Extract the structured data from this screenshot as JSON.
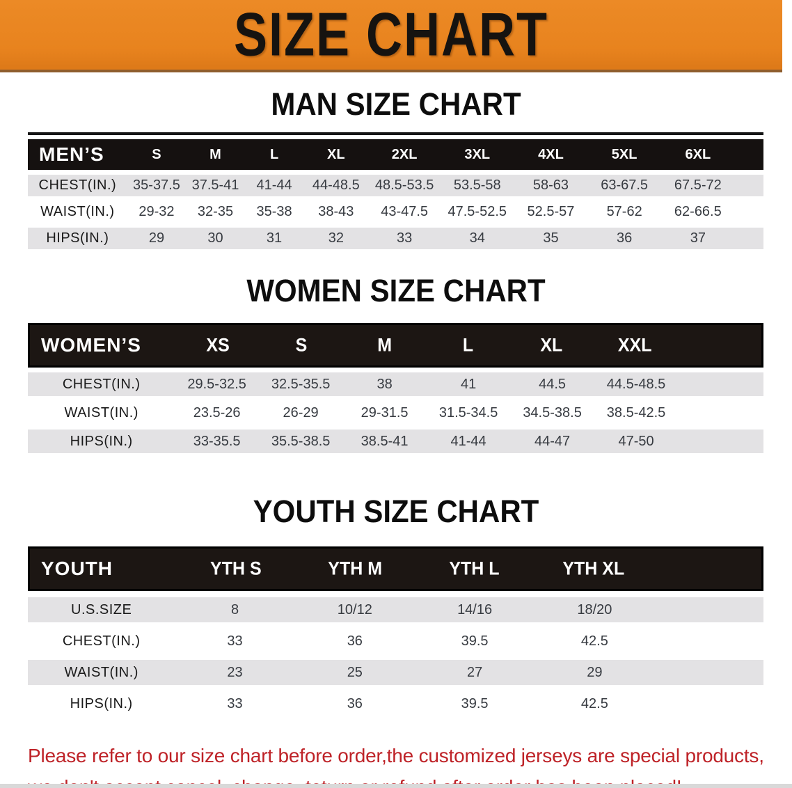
{
  "banner": {
    "title": "SIZE CHART",
    "color_orange": "#E8831E"
  },
  "sections": [
    {
      "title": "MAN SIZE CHART",
      "group_label": "MEN’S",
      "columns": [
        "S",
        "M",
        "L",
        "XL",
        "2XL",
        "3XL",
        "4XL",
        "5XL",
        "6XL"
      ],
      "rows": [
        {
          "label": "CHEST(IN.)",
          "values": [
            "35-37.5",
            "37.5-41",
            "41-44",
            "44-48.5",
            "48.5-53.5",
            "53.5-58",
            "58-63",
            "63-67.5",
            "67.5-72"
          ]
        },
        {
          "label": "WAIST(IN.)",
          "values": [
            "29-32",
            "32-35",
            "35-38",
            "38-43",
            "43-47.5",
            "47.5-52.5",
            "52.5-57",
            "57-62",
            "62-66.5"
          ]
        },
        {
          "label": "HIPS(IN.)",
          "values": [
            "29",
            "30",
            "31",
            "32",
            "33",
            "34",
            "35",
            "36",
            "37"
          ]
        }
      ]
    },
    {
      "title": "WOMEN SIZE CHART",
      "group_label": "WOMEN’S",
      "columns": [
        "XS",
        "S",
        "M",
        "L",
        "XL",
        "XXL"
      ],
      "rows": [
        {
          "label": "CHEST(IN.)",
          "values": [
            "29.5-32.5",
            "32.5-35.5",
            "38",
            "41",
            "44.5",
            "44.5-48.5"
          ]
        },
        {
          "label": "WAIST(IN.)",
          "values": [
            "23.5-26",
            "26-29",
            "29-31.5",
            "31.5-34.5",
            "34.5-38.5",
            "38.5-42.5"
          ]
        },
        {
          "label": "HIPS(IN.)",
          "values": [
            "33-35.5",
            "35.5-38.5",
            "38.5-41",
            "41-44",
            "44-47",
            "47-50"
          ]
        }
      ]
    },
    {
      "title": "YOUTH SIZE CHART",
      "group_label": "YOUTH",
      "columns": [
        "YTH S",
        "YTH M",
        "YTH L",
        "YTH XL"
      ],
      "rows": [
        {
          "label": "U.S.SIZE",
          "values": [
            "8",
            "10/12",
            "14/16",
            "18/20"
          ]
        },
        {
          "label": "CHEST(IN.)",
          "values": [
            "33",
            "36",
            "39.5",
            "42.5"
          ]
        },
        {
          "label": "WAIST(IN.)",
          "values": [
            "23",
            "25",
            "27",
            "29"
          ]
        },
        {
          "label": "HIPS(IN.)",
          "values": [
            "33",
            "36",
            "39.5",
            "42.5"
          ]
        }
      ]
    }
  ],
  "disclaimer": {
    "color_red": "#BE2227",
    "lines": [
      "Please refer to our size chart before order,the customized jerseys are special products,",
      "we don't accept cancel, change, teturn or refund after order has been placed!"
    ]
  },
  "colors": {
    "band_black": "#151110",
    "row_gray": "#E3E2E4"
  }
}
